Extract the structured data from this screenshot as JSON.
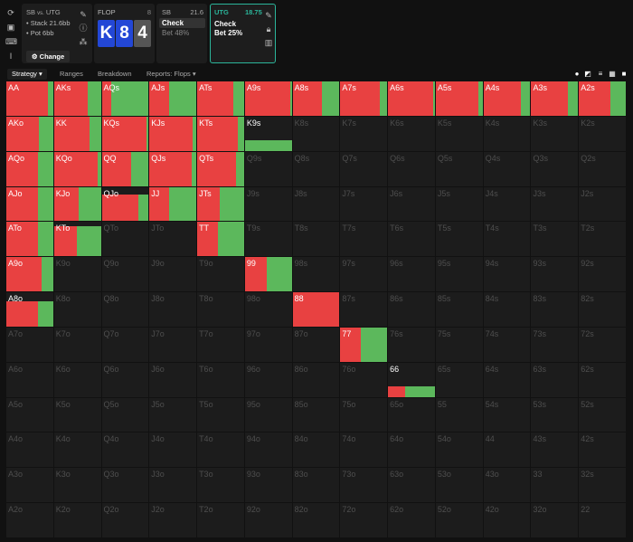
{
  "header": {
    "scenario": {
      "title_a": "SB",
      "vs": "vs.",
      "title_b": "UTG",
      "stack": "• Stack 21.6bb",
      "pot": "• Pot 6bb",
      "change_button": "⚙ Change"
    },
    "flop": {
      "label": "FLOP",
      "count": "8",
      "cards": [
        {
          "rank": "K",
          "color": "#2347d6"
        },
        {
          "rank": "8",
          "color": "#2347d6"
        },
        {
          "rank": "4",
          "color": "#555555"
        }
      ]
    },
    "sb": {
      "label": "SB",
      "stack": "21.6",
      "actions": [
        "Check",
        "Bet 48%"
      ],
      "selected": 0
    },
    "utg": {
      "label": "UTG",
      "stack": "18.75",
      "actions": [
        "Check",
        "Bet 25%"
      ],
      "accent": "#2bb59a"
    }
  },
  "tabs": [
    "Strategy ▾",
    "Ranges",
    "Breakdown",
    "Reports: Flops ▾"
  ],
  "colors": {
    "bet": "#e84141",
    "check": "#5cb85c"
  },
  "legend": {
    "red": "Bet 25%",
    "green": "Check"
  },
  "grid": {
    "rows": [
      [
        "AA",
        "AKs",
        "AQs",
        "AJs",
        "ATs",
        "A9s",
        "A8s",
        "A7s",
        "A6s",
        "A5s",
        "A4s",
        "A3s",
        "A2s"
      ],
      [
        "AKo",
        "KK",
        "KQs",
        "KJs",
        "KTs",
        "K9s",
        "K8s",
        "K7s",
        "K6s",
        "K5s",
        "K4s",
        "K3s",
        "K2s"
      ],
      [
        "AQo",
        "KQo",
        "QQ",
        "QJs",
        "QTs",
        "Q9s",
        "Q8s",
        "Q7s",
        "Q6s",
        "Q5s",
        "Q4s",
        "Q3s",
        "Q2s"
      ],
      [
        "AJo",
        "KJo",
        "QJo",
        "JJ",
        "JTs",
        "J9s",
        "J8s",
        "J7s",
        "J6s",
        "J5s",
        "J4s",
        "J3s",
        "J2s"
      ],
      [
        "ATo",
        "KTo",
        "QTo",
        "JTo",
        "TT",
        "T9s",
        "T8s",
        "T7s",
        "T6s",
        "T5s",
        "T4s",
        "T3s",
        "T2s"
      ],
      [
        "A9o",
        "K9o",
        "Q9o",
        "J9o",
        "T9o",
        "99",
        "98s",
        "97s",
        "96s",
        "95s",
        "94s",
        "93s",
        "92s"
      ],
      [
        "A8o",
        "K8o",
        "Q8o",
        "J8o",
        "T8o",
        "98o",
        "88",
        "87s",
        "86s",
        "85s",
        "84s",
        "83s",
        "82s"
      ],
      [
        "A7o",
        "K7o",
        "Q7o",
        "J7o",
        "T7o",
        "97o",
        "87o",
        "77",
        "76s",
        "75s",
        "74s",
        "73s",
        "72s"
      ],
      [
        "A6o",
        "K6o",
        "Q6o",
        "J6o",
        "T6o",
        "96o",
        "86o",
        "76o",
        "66",
        "65s",
        "64s",
        "63s",
        "62s"
      ],
      [
        "A5o",
        "K5o",
        "Q5o",
        "J5o",
        "T5o",
        "95o",
        "85o",
        "75o",
        "65o",
        "55",
        "54s",
        "53s",
        "52s"
      ],
      [
        "A4o",
        "K4o",
        "Q4o",
        "J4o",
        "T4o",
        "94o",
        "84o",
        "74o",
        "64o",
        "54o",
        "44",
        "43s",
        "42s"
      ],
      [
        "A3o",
        "K3o",
        "Q3o",
        "J3o",
        "T3o",
        "93o",
        "83o",
        "73o",
        "63o",
        "53o",
        "43o",
        "33",
        "32s"
      ],
      [
        "A2o",
        "K2o",
        "Q2o",
        "J2o",
        "T2o",
        "92o",
        "82o",
        "72o",
        "62o",
        "52o",
        "42o",
        "32o",
        "22"
      ]
    ],
    "strategy": {
      "AA": {
        "freq": 1,
        "bet": 0.88
      },
      "AKs": {
        "freq": 1,
        "bet": 0.72
      },
      "AQs": {
        "freq": 1,
        "bet": 0.2
      },
      "AJs": {
        "freq": 1,
        "bet": 0.41
      },
      "ATs": {
        "freq": 1,
        "bet": 0.77
      },
      "A9s": {
        "freq": 1,
        "bet": 0.97
      },
      "A8s": {
        "freq": 1,
        "bet": 0.63
      },
      "A7s": {
        "freq": 1,
        "bet": 0.85
      },
      "A6s": {
        "freq": 1,
        "bet": 0.97
      },
      "A5s": {
        "freq": 1,
        "bet": 0.9
      },
      "A4s": {
        "freq": 1,
        "bet": 0.8
      },
      "A3s": {
        "freq": 1,
        "bet": 0.78
      },
      "A2s": {
        "freq": 1,
        "bet": 0.67
      },
      "AKo": {
        "freq": 1,
        "bet": 0.7
      },
      "KK": {
        "freq": 1,
        "bet": 0.75
      },
      "KQs": {
        "freq": 1,
        "bet": 0.95
      },
      "KJs": {
        "freq": 1,
        "bet": 0.93
      },
      "KTs": {
        "freq": 1,
        "bet": 0.87
      },
      "K9s": {
        "freq": 0.3,
        "bet": 0
      },
      "AQo": {
        "freq": 1,
        "bet": 0.68
      },
      "KQo": {
        "freq": 1,
        "bet": 0.93
      },
      "QQ": {
        "freq": 1,
        "bet": 0.63
      },
      "QJs": {
        "freq": 1,
        "bet": 0.9
      },
      "QTs": {
        "freq": 1,
        "bet": 0.83
      },
      "AJo": {
        "freq": 1,
        "bet": 0.68
      },
      "KJo": {
        "freq": 1,
        "bet": 0.53
      },
      "QJo": {
        "freq": 0.78,
        "bet": 0.78
      },
      "JJ": {
        "freq": 1,
        "bet": 0.42
      },
      "JTs": {
        "freq": 1,
        "bet": 0.48
      },
      "ATo": {
        "freq": 1,
        "bet": 0.68
      },
      "KTo": {
        "freq": 0.88,
        "bet": 0.48
      },
      "TT": {
        "freq": 1,
        "bet": 0.45
      },
      "A9o": {
        "freq": 1,
        "bet": 0.75
      },
      "99": {
        "freq": 1,
        "bet": 0.47
      },
      "A8o": {
        "freq": 0.75,
        "bet": 0.68
      },
      "88": {
        "freq": 1,
        "bet": 1
      },
      "77": {
        "freq": 1,
        "bet": 0.44
      },
      "66": {
        "freq": 0.3,
        "bet": 0.37
      }
    }
  }
}
